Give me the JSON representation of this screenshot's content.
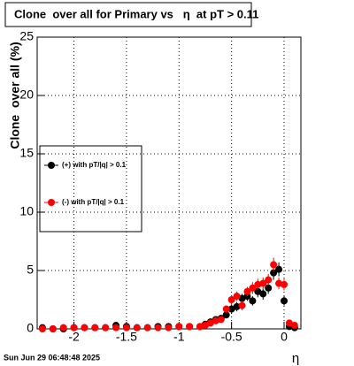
{
  "chart_data": {
    "type": "scatter",
    "title": "Clone  over all for Primary vs   η  at pT > 0.11",
    "x_label": "η",
    "y_label": "Clone  over all (%)",
    "timestamp": "Sun Jun 29 06:48:48 2025",
    "xlim": [
      -2.35,
      0.16
    ],
    "ylim": [
      0,
      25
    ],
    "xticks": [
      -2,
      -1.5,
      -1,
      -0.5,
      0
    ],
    "yticks": [
      0,
      5,
      10,
      15,
      20,
      25
    ],
    "grid": true,
    "series": [
      {
        "name": "(+) with pT/|q| > 0.1",
        "color": "#000000",
        "x": [
          -2.3,
          -2.2,
          -2.1,
          -2.0,
          -1.9,
          -1.8,
          -1.7,
          -1.6,
          -1.5,
          -1.4,
          -1.3,
          -1.2,
          -1.1,
          -1.0,
          -0.9,
          -0.8,
          -0.75,
          -0.7,
          -0.65,
          -0.6,
          -0.55,
          -0.5,
          -0.45,
          -0.4,
          -0.35,
          -0.3,
          -0.25,
          -0.2,
          -0.15,
          -0.1,
          -0.05,
          0,
          0.05,
          0.1
        ],
        "values": [
          0.1,
          0,
          0,
          0.1,
          0.1,
          0.1,
          0.1,
          0.3,
          0.2,
          0.1,
          0.1,
          0.2,
          0.2,
          0.2,
          0.2,
          0.2,
          0.4,
          0.6,
          0.8,
          0.9,
          1.2,
          1.7,
          1.9,
          2.6,
          2.8,
          2.4,
          3.2,
          3.0,
          3.5,
          4.8,
          5.1,
          2.4,
          0.2,
          0.1
        ],
        "errors": [
          0.1,
          0.1,
          0.1,
          0.1,
          0.1,
          0.1,
          0.1,
          0.2,
          0.1,
          0.1,
          0.1,
          0.1,
          0.1,
          0.1,
          0.1,
          0.1,
          0.2,
          0.2,
          0.3,
          0.3,
          0.3,
          0.4,
          0.4,
          0.4,
          0.4,
          0.4,
          0.5,
          0.5,
          0.5,
          0.6,
          0.6,
          0.4,
          0.1,
          0.1
        ]
      },
      {
        "name": "(-) with pT/|q| > 0.1",
        "color": "#ff0000",
        "x": [
          -2.3,
          -2.2,
          -2.1,
          -2.0,
          -1.9,
          -1.8,
          -1.7,
          -1.6,
          -1.5,
          -1.4,
          -1.3,
          -1.2,
          -1.1,
          -1.0,
          -0.9,
          -0.8,
          -0.75,
          -0.7,
          -0.65,
          -0.6,
          -0.55,
          -0.5,
          -0.45,
          -0.4,
          -0.35,
          -0.3,
          -0.25,
          -0.2,
          -0.15,
          -0.1,
          -0.05,
          0,
          0.05,
          0.1
        ],
        "values": [
          0,
          0,
          0.1,
          0.1,
          0.1,
          0.1,
          0.1,
          0.1,
          0.1,
          0.1,
          0.1,
          0.1,
          0.1,
          0.2,
          0.2,
          0.2,
          0.3,
          0.5,
          0.7,
          0.8,
          1.7,
          2.5,
          2.8,
          2.0,
          3.2,
          3.5,
          3.8,
          3.9,
          4.2,
          5.5,
          3.9,
          3.8,
          0.5,
          0.3
        ],
        "errors": [
          0.1,
          0.1,
          0.1,
          0.1,
          0.1,
          0.1,
          0.1,
          0.1,
          0.1,
          0.1,
          0.1,
          0.1,
          0.1,
          0.1,
          0.1,
          0.1,
          0.2,
          0.2,
          0.3,
          0.3,
          0.3,
          0.4,
          0.4,
          0.4,
          0.4,
          0.5,
          0.5,
          0.5,
          0.5,
          0.6,
          0.5,
          0.5,
          0.2,
          0.1
        ]
      }
    ]
  }
}
